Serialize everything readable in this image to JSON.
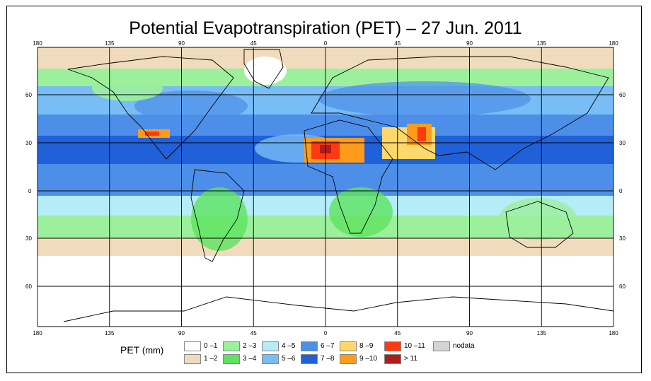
{
  "title": "Potential Evapotranspiration (PET) – 27 Jun. 2011",
  "longitude_labels": [
    "180",
    "135",
    "90",
    "45",
    "0",
    "45",
    "90",
    "135",
    "180"
  ],
  "latitude_labels": [
    "60",
    "30",
    "0",
    "30",
    "60"
  ],
  "legend": {
    "title": "PET",
    "unit": "(mm)",
    "items": [
      {
        "label": "0 –1",
        "color": "#ffffff"
      },
      {
        "label": "1 –2",
        "color": "#f0dcbc"
      },
      {
        "label": "2 –3",
        "color": "#9cf09c"
      },
      {
        "label": "3 –4",
        "color": "#5ee35e"
      },
      {
        "label": "4 –5",
        "color": "#b4ecf8"
      },
      {
        "label": "5 –6",
        "color": "#78bdf5"
      },
      {
        "label": "6 –7",
        "color": "#4d8fe8"
      },
      {
        "label": "7 –8",
        "color": "#2060d8"
      },
      {
        "label": "8 –9",
        "color": "#ffd86b"
      },
      {
        "label": "9 –10",
        "color": "#ff9b1a"
      },
      {
        "label": "10 –11",
        "color": "#ff3a10"
      },
      {
        "label": "> 11",
        "color": "#b01c1c"
      },
      {
        "label": "nodata",
        "color": "#d4d4d4"
      }
    ]
  }
}
